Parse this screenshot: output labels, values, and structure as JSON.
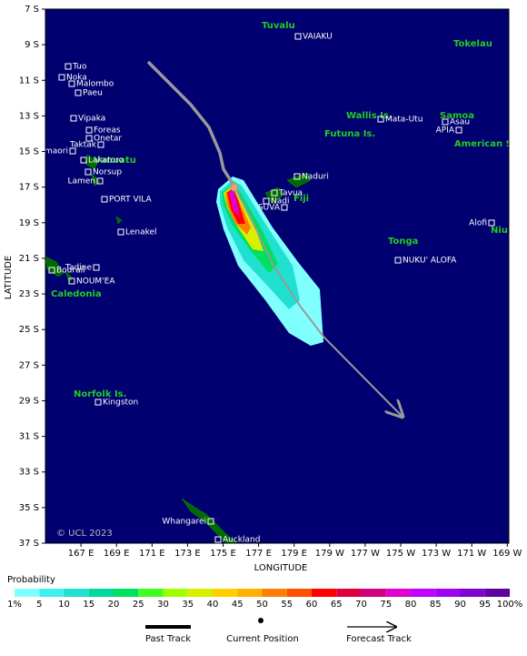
{
  "map": {
    "x_label": "LONGITUDE",
    "y_label": "LATITUDE",
    "copyright": "© UCL 2023",
    "lat_ticks": [
      {
        "value": -7,
        "label": "7 S"
      },
      {
        "value": -9,
        "label": "9 S"
      },
      {
        "value": -11,
        "label": "11 S"
      },
      {
        "value": -13,
        "label": "13 S"
      },
      {
        "value": -15,
        "label": "15 S"
      },
      {
        "value": -17,
        "label": "17 S"
      },
      {
        "value": -19,
        "label": "19 S"
      },
      {
        "value": -21,
        "label": "21 S"
      },
      {
        "value": -23,
        "label": "23 S"
      },
      {
        "value": -25,
        "label": "25 S"
      },
      {
        "value": -27,
        "label": "27 S"
      },
      {
        "value": -29,
        "label": "29 S"
      },
      {
        "value": -31,
        "label": "31 S"
      },
      {
        "value": -33,
        "label": "33 S"
      },
      {
        "value": -35,
        "label": "35 S"
      },
      {
        "value": -37,
        "label": "37 S"
      }
    ],
    "lon_ticks": [
      {
        "value": 167,
        "label": "167 E"
      },
      {
        "value": 169,
        "label": "169 E"
      },
      {
        "value": 171,
        "label": "171 E"
      },
      {
        "value": 173,
        "label": "173 E"
      },
      {
        "value": 175,
        "label": "175 E"
      },
      {
        "value": 177,
        "label": "177 E"
      },
      {
        "value": 179,
        "label": "179 E"
      },
      {
        "value": 181,
        "label": "179 W"
      },
      {
        "value": 183,
        "label": "177 W"
      },
      {
        "value": 185,
        "label": "175 W"
      },
      {
        "value": 187,
        "label": "173 W"
      },
      {
        "value": 189,
        "label": "171 W"
      },
      {
        "value": 191,
        "label": "169 W"
      }
    ],
    "regions": [
      "Tuvalu",
      "Tokelau",
      "Wallis Is.",
      "Samoa",
      "Futuna Is.",
      "American S",
      "Vanuatu",
      "Fiji",
      "Niue",
      "Tonga",
      "Caledonia",
      "Norfolk Is."
    ],
    "places": [
      "VAIAKU",
      "Tuo",
      "Noka",
      "Malombo",
      "Paeu",
      "Vipaka",
      "Foreas",
      "Onetar",
      "Taktak",
      "Tasmaori",
      "Lakatoro",
      "Norsup",
      "Lamen",
      "PORT VILA",
      "Lenakel",
      "Tadine",
      "Bourail",
      "NOUM'EA",
      "Mata-Utu",
      "Asau",
      "APIA",
      "Naduri",
      "Tavua",
      "Nadi",
      "SUVA",
      "Alofi",
      "NUKU' ALOFA",
      "Kingston",
      "Whangarei",
      "Auckland"
    ]
  },
  "legend": {
    "title": "Probability",
    "labels": [
      "1%",
      "5",
      "10",
      "15",
      "20",
      "25",
      "30",
      "35",
      "40",
      "45",
      "50",
      "55",
      "60",
      "65",
      "70",
      "75",
      "80",
      "85",
      "90",
      "95",
      "100%"
    ],
    "colors": [
      "#80ffff",
      "#40f0f0",
      "#20e0d0",
      "#00d8a0",
      "#00e060",
      "#40ff20",
      "#a0ff00",
      "#d8f000",
      "#ffd000",
      "#ffb000",
      "#ff8000",
      "#ff5000",
      "#ff0000",
      "#e00040",
      "#d00080",
      "#e000d0",
      "#c000ff",
      "#a000f0",
      "#8000d0",
      "#6000a0",
      "#600060"
    ],
    "key": [
      "Past Track",
      "Current Position",
      "Forecast Track"
    ]
  }
}
